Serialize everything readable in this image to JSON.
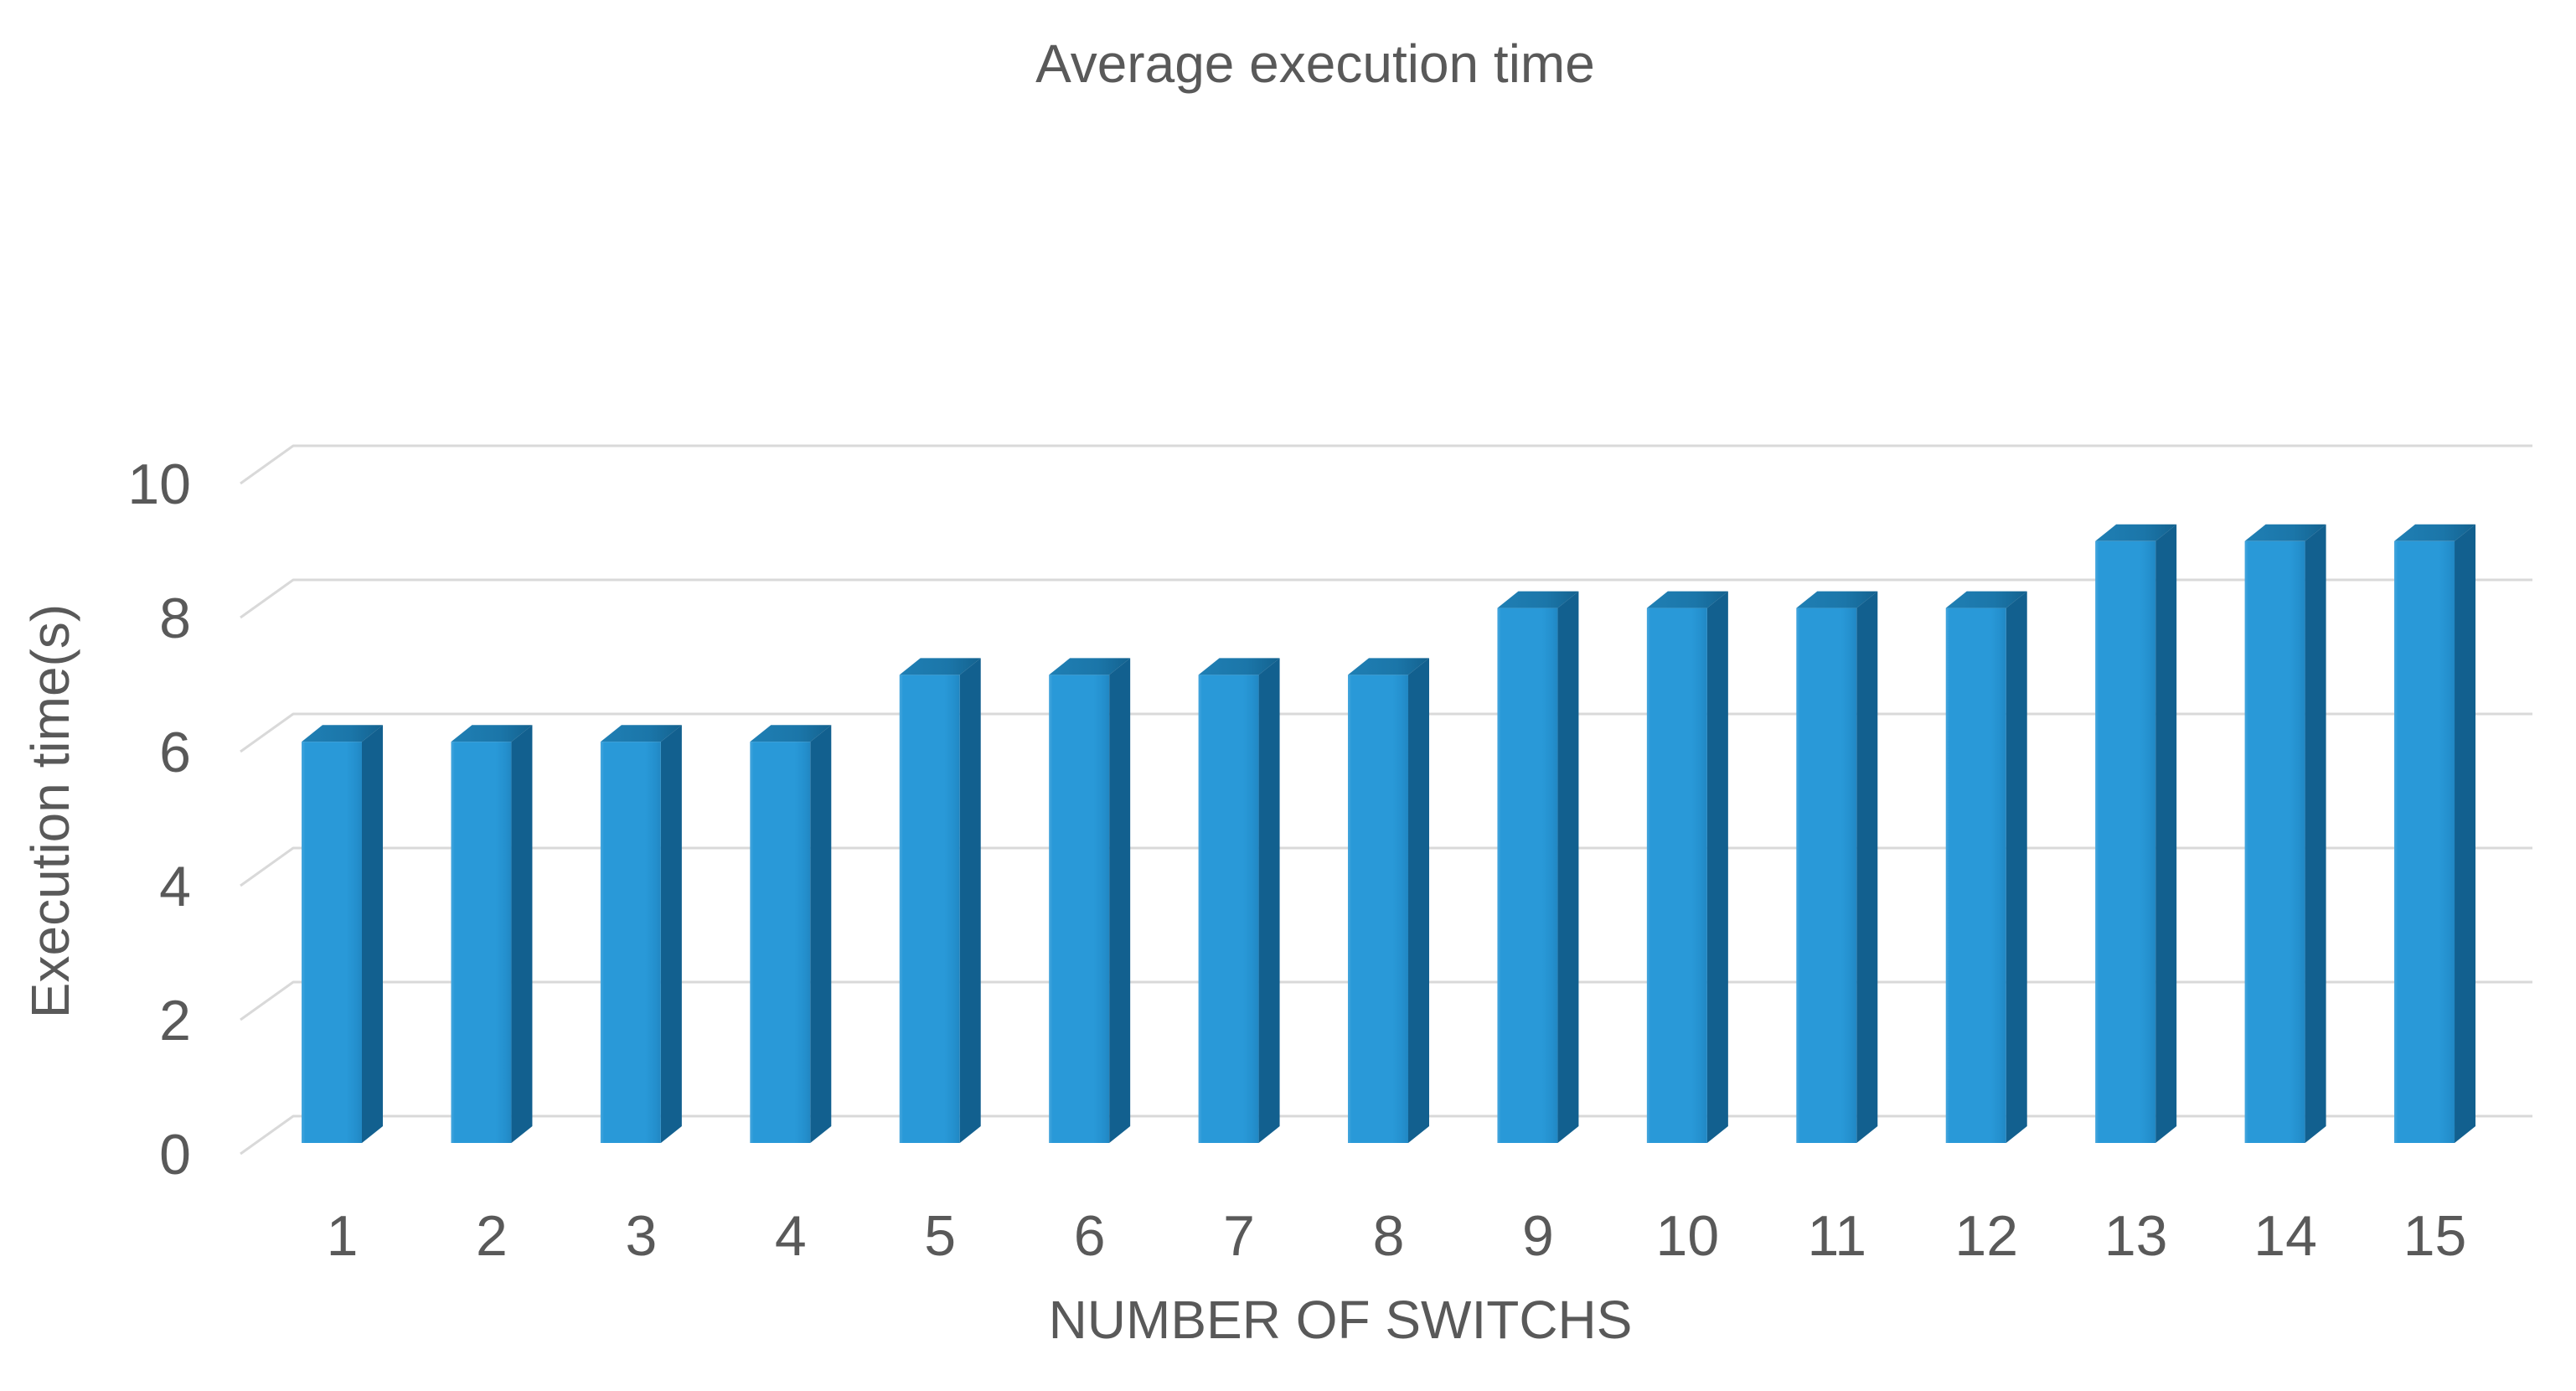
{
  "page": {
    "background": "#FFFFFF"
  },
  "chart_data": {
    "type": "bar",
    "style": "3d-column",
    "title": "Average execution time",
    "xlabel": "NUMBER OF SWITCHS",
    "ylabel": "Execution time(s)",
    "categories": [
      "1",
      "2",
      "3",
      "4",
      "5",
      "6",
      "7",
      "8",
      "9",
      "10",
      "11",
      "12",
      "13",
      "14",
      "15"
    ],
    "values": [
      6,
      6,
      6,
      6,
      7,
      7,
      7,
      7,
      8,
      8,
      8,
      8,
      9,
      9,
      9
    ],
    "series_name": "Average execution time",
    "ylim": [
      0,
      10
    ],
    "yticks": [
      0,
      2,
      4,
      6,
      8,
      10
    ],
    "grid": true,
    "legend": "none",
    "data_labels": false,
    "colors": {
      "bar_front": "#2999D8",
      "bar_front_highlight": "#46A6DD",
      "bar_front_shade": "#2187C3",
      "bar_side": "#12608F",
      "bar_top": "#1B76A9",
      "gridline": "#D9D9D9",
      "text": "#595959",
      "background": "#FFFFFF"
    }
  }
}
